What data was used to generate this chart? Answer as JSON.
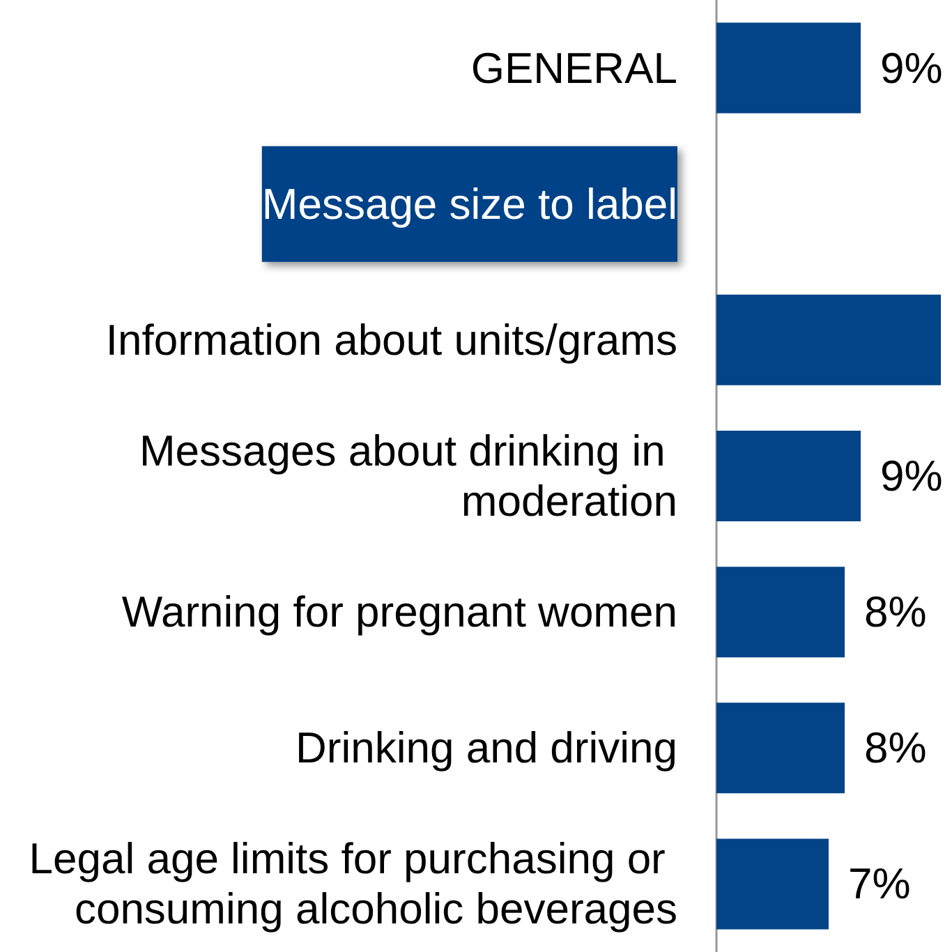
{
  "chart_data": {
    "type": "bar",
    "orientation": "horizontal",
    "categories": [
      "GENERAL",
      "Message size to label",
      "Information about units/grams",
      "Messages about drinking in moderation",
      "Warning for pregnant women",
      "Drinking and driving",
      "Legal age limits for purchasing or consuming alcoholic beverages"
    ],
    "values": [
      9,
      null,
      14,
      9,
      8,
      8,
      7
    ],
    "value_labels": [
      "9%",
      null,
      null,
      "9%",
      "8%",
      "8%",
      "7%"
    ],
    "color": "#034387",
    "xlim": [
      0,
      14
    ],
    "tick_labels": "y"
  }
}
